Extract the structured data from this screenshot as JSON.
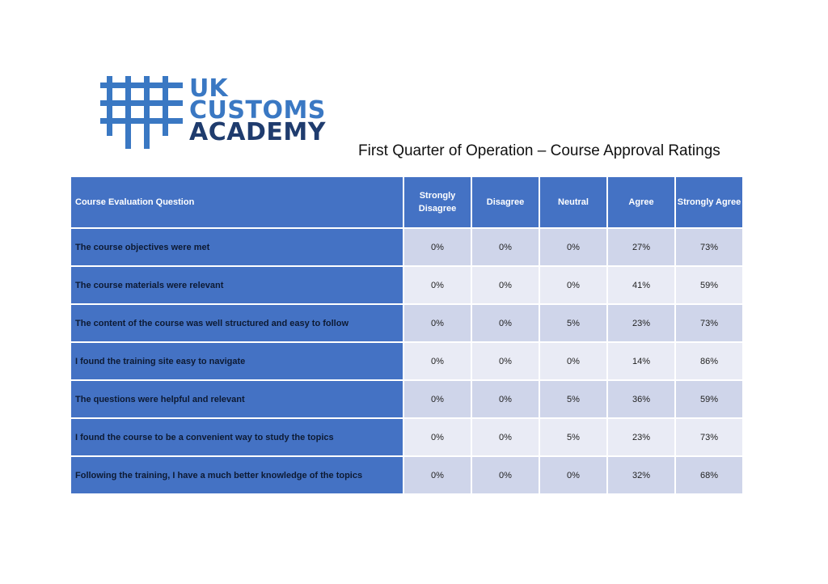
{
  "logo": {
    "line1": "UK",
    "line2": "CUSTOMS",
    "line3": "ACADEMY",
    "colors": {
      "light": "#3a78c3",
      "dark": "#1f3c6e"
    }
  },
  "title": "First Quarter of Operation – Course Approval Ratings",
  "table": {
    "headers": [
      "Course Evaluation Question",
      "Strongly Disagree",
      "Disagree",
      "Neutral",
      "Agree",
      "Strongly Agree"
    ],
    "rows": [
      {
        "question": "The course objectives were met",
        "values": [
          "0%",
          "0%",
          "0%",
          "27%",
          "73%"
        ]
      },
      {
        "question": "The course materials were relevant",
        "values": [
          "0%",
          "0%",
          "0%",
          "41%",
          "59%"
        ]
      },
      {
        "question": "The content of the course was well structured and easy to follow",
        "values": [
          "0%",
          "0%",
          "5%",
          "23%",
          "73%"
        ]
      },
      {
        "question": "I found the training site easy to navigate",
        "values": [
          "0%",
          "0%",
          "0%",
          "14%",
          "86%"
        ]
      },
      {
        "question": "The questions were helpful and relevant",
        "values": [
          "0%",
          "0%",
          "5%",
          "36%",
          "59%"
        ]
      },
      {
        "question": "I found the course to be a convenient way to study the topics",
        "values": [
          "0%",
          "0%",
          "5%",
          "23%",
          "73%"
        ]
      },
      {
        "question": "Following the training, I have a much better knowledge of the topics",
        "values": [
          "0%",
          "0%",
          "0%",
          "32%",
          "68%"
        ]
      }
    ],
    "colors": {
      "header": "#4472c4",
      "band_dark": "#cfd5ea",
      "band_light": "#e9ebf5"
    }
  }
}
